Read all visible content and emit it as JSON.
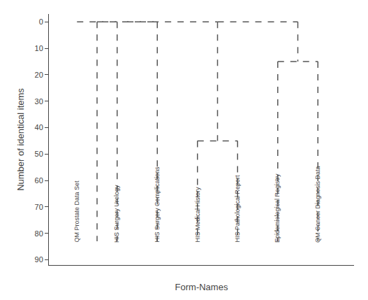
{
  "chart_data": {
    "type": "dendrogram",
    "xlabel": "Form-Names",
    "ylabel": "Number of identical items",
    "categories": [
      "QM Prostate Data Set",
      "HIS Surgery Urology",
      "HIS Surgery Complications",
      "HIS Medical History",
      "HIS Pathological Report",
      "Epidemiological Registry",
      "QM Cancer Diagnosis Data"
    ],
    "positions": [
      1,
      2,
      3,
      4,
      5,
      6,
      7
    ],
    "label_y": 84,
    "xlim": [
      0.3,
      7.9
    ],
    "ylim": [
      92,
      -3
    ],
    "yticks": [
      0,
      10,
      20,
      30,
      40,
      50,
      60,
      70,
      80,
      90
    ],
    "color": "#555555",
    "line_style": "dashed",
    "grid": false,
    "tick_labels": "y",
    "segments": [
      {
        "kind": "h",
        "x1": 1,
        "x2": 2,
        "y": 0
      },
      {
        "kind": "v",
        "x": 1.5,
        "y1": 0,
        "y2": 83
      },
      {
        "kind": "h",
        "x1": 1.5,
        "x2": 3,
        "y": 0
      },
      {
        "kind": "v",
        "x": 2,
        "y1": 0,
        "y2": 83
      },
      {
        "kind": "v",
        "x": 3,
        "y1": 0,
        "y2": 83
      },
      {
        "kind": "h",
        "x1": 4,
        "x2": 5,
        "y": 45
      },
      {
        "kind": "v",
        "x": 4,
        "y1": 45,
        "y2": 83
      },
      {
        "kind": "v",
        "x": 5,
        "y1": 45,
        "y2": 83
      },
      {
        "kind": "v",
        "x": 4.5,
        "y1": 0,
        "y2": 45
      },
      {
        "kind": "h",
        "x1": 2.25,
        "x2": 4.5,
        "y": 0
      },
      {
        "kind": "h",
        "x1": 6,
        "x2": 7,
        "y": 15
      },
      {
        "kind": "v",
        "x": 6,
        "y1": 15,
        "y2": 83
      },
      {
        "kind": "v",
        "x": 7,
        "y1": 15,
        "y2": 83
      },
      {
        "kind": "v",
        "x": 6.5,
        "y1": 0,
        "y2": 15
      },
      {
        "kind": "h",
        "x1": 4.5,
        "x2": 6.5,
        "y": 0
      }
    ]
  }
}
